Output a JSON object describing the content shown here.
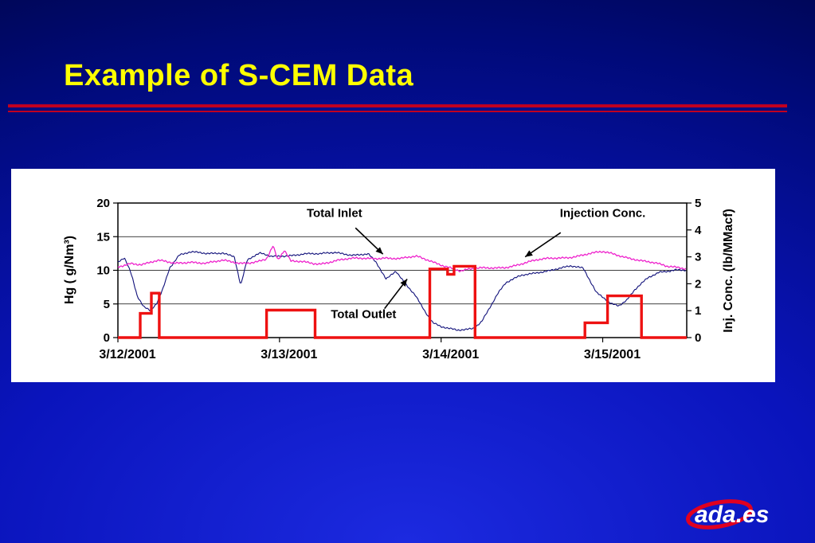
{
  "slide": {
    "title": "Example of S-CEM Data"
  },
  "logo": {
    "text": "ada.es"
  },
  "chart_data": {
    "type": "line",
    "title": "",
    "x_axis": {
      "range_days": [
        0,
        3.52
      ],
      "ticks": [
        {
          "day": 0,
          "label": "3/12/2001"
        },
        {
          "day": 1,
          "label": "3/13/2001"
        },
        {
          "day": 2,
          "label": "3/14/2001"
        },
        {
          "day": 3,
          "label": "3/15/2001"
        }
      ]
    },
    "y_left": {
      "title": "Hg ( g/Nm³)",
      "range": [
        0,
        20
      ],
      "ticks": [
        0,
        5,
        10,
        15,
        20
      ],
      "gridlines": [
        5,
        10,
        15
      ]
    },
    "y_right": {
      "title": "Inj. Conc. (lb/MMacf)",
      "range": [
        0,
        5
      ],
      "ticks": [
        0,
        1,
        2,
        3,
        4,
        5
      ]
    },
    "annotations": [
      {
        "label": "Total Inlet",
        "pos": [
          1.34,
          17.9
        ],
        "arrow": {
          "from": [
            1.47,
            16.3
          ],
          "to": [
            1.64,
            12.4
          ]
        }
      },
      {
        "label": "Injection Conc.",
        "pos": [
          3.0,
          17.9
        ],
        "arrow": {
          "from": [
            2.74,
            15.6
          ],
          "to": [
            2.52,
            12.0
          ]
        }
      },
      {
        "label": "Total Outlet",
        "pos": [
          1.52,
          2.9
        ],
        "arrow": {
          "from": [
            1.65,
            4.3
          ],
          "to": [
            1.79,
            8.7
          ]
        }
      }
    ],
    "series": [
      {
        "name": "Total Outlet",
        "axis": "left",
        "color": "#10107a",
        "stroke_width": 1.1,
        "style": "noisy",
        "noise": 0.3,
        "points": [
          [
            0,
            11.2
          ],
          [
            0.04,
            11.8
          ],
          [
            0.08,
            9.5
          ],
          [
            0.12,
            6.0
          ],
          [
            0.16,
            4.5
          ],
          [
            0.2,
            4.0
          ],
          [
            0.24,
            5.2
          ],
          [
            0.28,
            7.5
          ],
          [
            0.32,
            10.5
          ],
          [
            0.38,
            12.3
          ],
          [
            0.45,
            12.6
          ],
          [
            0.55,
            12.4
          ],
          [
            0.65,
            12.7
          ],
          [
            0.72,
            12.2
          ],
          [
            0.76,
            7.8
          ],
          [
            0.8,
            11.5
          ],
          [
            0.88,
            12.4
          ],
          [
            0.95,
            12.0
          ],
          [
            1.05,
            12.3
          ],
          [
            1.15,
            12.5
          ],
          [
            1.25,
            12.3
          ],
          [
            1.35,
            12.6
          ],
          [
            1.45,
            12.4
          ],
          [
            1.55,
            12.5
          ],
          [
            1.6,
            11.0
          ],
          [
            1.66,
            8.5
          ],
          [
            1.72,
            9.8
          ],
          [
            1.78,
            8.0
          ],
          [
            1.84,
            6.5
          ],
          [
            1.9,
            4.0
          ],
          [
            1.95,
            2.2
          ],
          [
            2.0,
            1.5
          ],
          [
            2.05,
            1.2
          ],
          [
            2.1,
            1.0
          ],
          [
            2.15,
            1.2
          ],
          [
            2.2,
            1.5
          ],
          [
            2.25,
            2.5
          ],
          [
            2.3,
            4.5
          ],
          [
            2.35,
            6.5
          ],
          [
            2.4,
            8.0
          ],
          [
            2.5,
            9.2
          ],
          [
            2.6,
            9.8
          ],
          [
            2.7,
            10.2
          ],
          [
            2.8,
            10.5
          ],
          [
            2.88,
            10.2
          ],
          [
            2.92,
            8.5
          ],
          [
            2.96,
            6.8
          ],
          [
            3.0,
            6.2
          ],
          [
            3.05,
            5.2
          ],
          [
            3.1,
            4.8
          ],
          [
            3.15,
            5.5
          ],
          [
            3.2,
            7.0
          ],
          [
            3.28,
            8.8
          ],
          [
            3.35,
            9.8
          ],
          [
            3.45,
            10.2
          ],
          [
            3.52,
            10.0
          ]
        ]
      },
      {
        "name": "Total Inlet",
        "axis": "left",
        "color": "#ee22cc",
        "stroke_width": 1.3,
        "style": "noisy",
        "noise": 0.35,
        "points": [
          [
            0,
            10.6
          ],
          [
            0.08,
            11.2
          ],
          [
            0.15,
            10.9
          ],
          [
            0.25,
            11.3
          ],
          [
            0.35,
            11.0
          ],
          [
            0.45,
            11.4
          ],
          [
            0.55,
            11.1
          ],
          [
            0.65,
            11.3
          ],
          [
            0.75,
            11.0
          ],
          [
            0.85,
            11.4
          ],
          [
            0.92,
            11.8
          ],
          [
            0.96,
            13.6
          ],
          [
            0.99,
            11.4
          ],
          [
            1.03,
            12.8
          ],
          [
            1.07,
            11.2
          ],
          [
            1.15,
            11.3
          ],
          [
            1.25,
            11.1
          ],
          [
            1.35,
            11.4
          ],
          [
            1.45,
            11.6
          ],
          [
            1.55,
            11.8
          ],
          [
            1.65,
            12.0
          ],
          [
            1.75,
            11.7
          ],
          [
            1.85,
            11.9
          ],
          [
            1.95,
            11.3
          ],
          [
            2.05,
            10.6
          ],
          [
            2.12,
            9.9
          ],
          [
            2.2,
            10.1
          ],
          [
            2.3,
            10.3
          ],
          [
            2.4,
            10.6
          ],
          [
            2.5,
            11.0
          ],
          [
            2.6,
            11.4
          ],
          [
            2.7,
            11.8
          ],
          [
            2.8,
            12.1
          ],
          [
            2.9,
            12.4
          ],
          [
            3.0,
            12.6
          ],
          [
            3.1,
            12.2
          ],
          [
            3.2,
            11.8
          ],
          [
            3.3,
            11.2
          ],
          [
            3.4,
            10.4
          ],
          [
            3.52,
            10.3
          ]
        ]
      },
      {
        "name": "Injection Conc.",
        "axis": "right",
        "color": "#ee1111",
        "stroke_width": 3.4,
        "style": "step",
        "noise": 0,
        "points": [
          [
            0,
            0
          ],
          [
            0.138,
            0
          ],
          [
            0.138,
            0.9
          ],
          [
            0.207,
            0.9
          ],
          [
            0.207,
            1.65
          ],
          [
            0.256,
            1.65
          ],
          [
            0.256,
            0
          ],
          [
            0.92,
            0
          ],
          [
            0.92,
            1.02
          ],
          [
            1.22,
            1.02
          ],
          [
            1.22,
            0
          ],
          [
            1.93,
            0
          ],
          [
            1.93,
            2.55
          ],
          [
            2.04,
            2.55
          ],
          [
            2.04,
            2.35
          ],
          [
            2.08,
            2.35
          ],
          [
            2.08,
            2.65
          ],
          [
            2.21,
            2.65
          ],
          [
            2.21,
            0
          ],
          [
            2.89,
            0
          ],
          [
            2.89,
            0.55
          ],
          [
            3.03,
            0.55
          ],
          [
            3.03,
            1.55
          ],
          [
            3.24,
            1.55
          ],
          [
            3.24,
            0
          ],
          [
            3.52,
            0
          ]
        ]
      }
    ]
  }
}
